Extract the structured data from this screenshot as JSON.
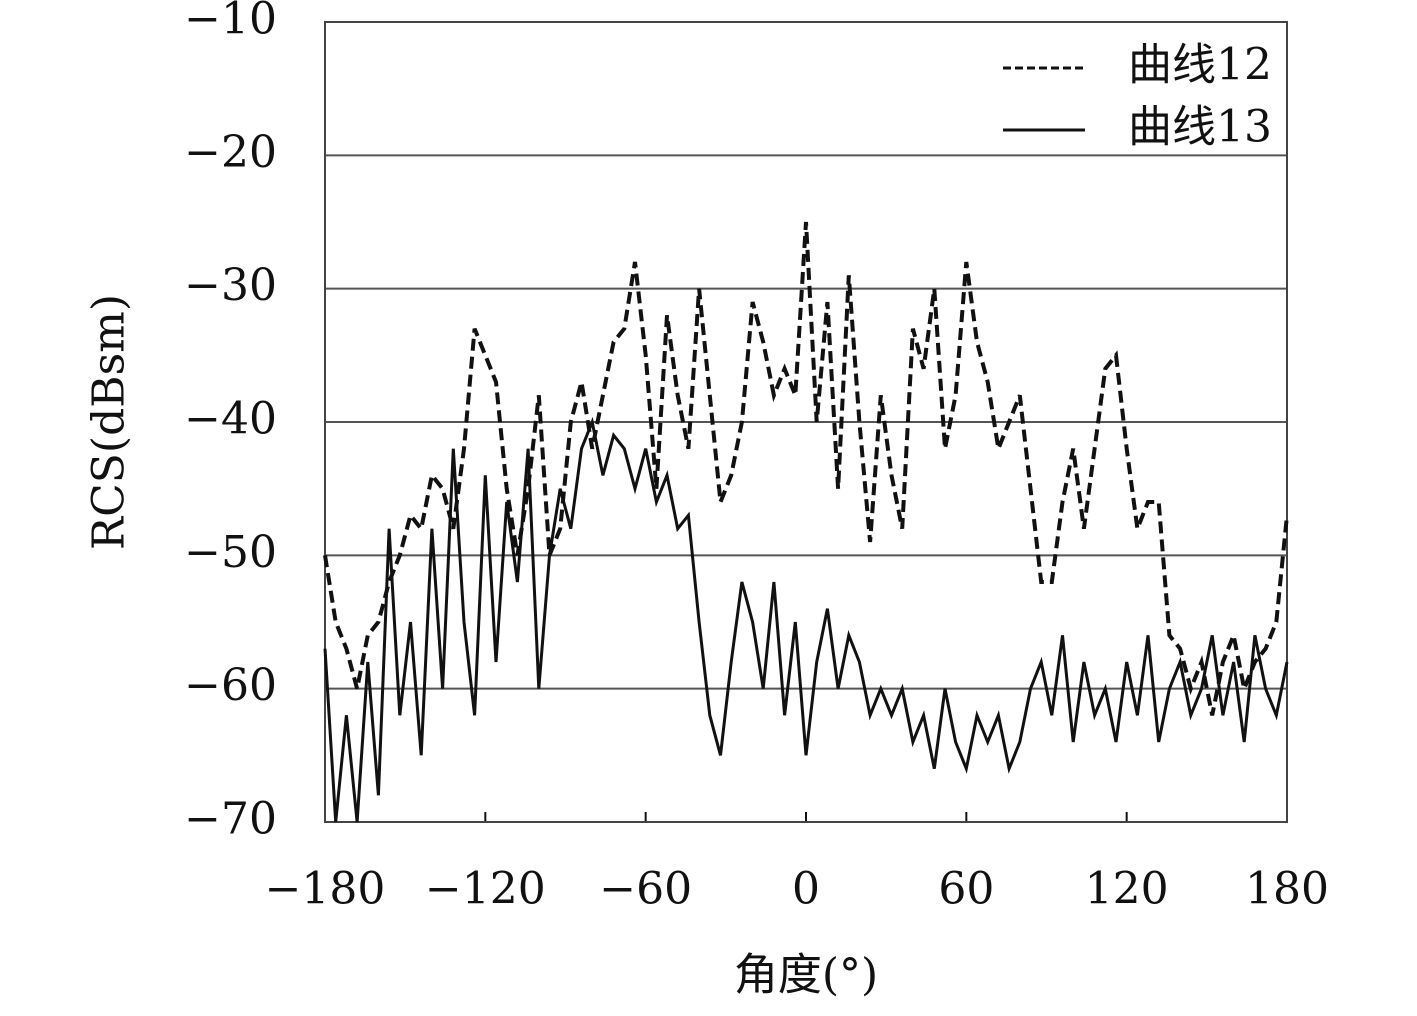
{
  "chart_data": {
    "type": "line",
    "xlabel": "角度(°)",
    "ylabel": "RCS(dBsm)",
    "xlim": [
      -180,
      180
    ],
    "ylim": [
      -70,
      -10
    ],
    "xticks": [
      {
        "value": -180,
        "label": "−180"
      },
      {
        "value": -120,
        "label": "−120"
      },
      {
        "value": -60,
        "label": "−60"
      },
      0,
      60,
      120,
      180
    ],
    "yticks": [
      {
        "value": -70,
        "label": "−70"
      },
      {
        "value": -60,
        "label": "−60"
      },
      {
        "value": -50,
        "label": "−50"
      },
      {
        "value": -40,
        "label": "−40"
      },
      {
        "value": -30,
        "label": "−30"
      },
      {
        "value": -20,
        "label": "−20"
      },
      {
        "value": -10,
        "label": "−10"
      }
    ],
    "grid": true,
    "legend": "upper right",
    "x": [
      -180,
      -176,
      -172,
      -168,
      -164,
      -160,
      -156,
      -152,
      -148,
      -144,
      -140,
      -136,
      -132,
      -128,
      -124,
      -120,
      -116,
      -112,
      -108,
      -104,
      -100,
      -96,
      -92,
      -88,
      -84,
      -80,
      -76,
      -72,
      -68,
      -64,
      -60,
      -56,
      -52,
      -48,
      -44,
      -40,
      -36,
      -32,
      -28,
      -24,
      -20,
      -16,
      -12,
      -8,
      -4,
      0,
      4,
      8,
      12,
      16,
      20,
      24,
      28,
      32,
      36,
      40,
      44,
      48,
      52,
      56,
      60,
      64,
      68,
      72,
      76,
      80,
      84,
      88,
      92,
      96,
      100,
      104,
      108,
      112,
      116,
      120,
      124,
      128,
      132,
      136,
      140,
      144,
      148,
      152,
      156,
      160,
      164,
      168,
      172,
      176,
      180
    ],
    "series": [
      {
        "name": "曲线12",
        "color": "#111111",
        "line_style": "dashed",
        "values": [
          -50,
          -55,
          -57,
          -60,
          -56,
          -55,
          -52,
          -50,
          -47,
          -48,
          -44,
          -45,
          -48,
          -42,
          -33,
          -35,
          -37,
          -45,
          -50,
          -45,
          -38,
          -50,
          -48,
          -40,
          -37,
          -42,
          -38,
          -34,
          -33,
          -28,
          -35,
          -45,
          -32,
          -38,
          -42,
          -30,
          -38,
          -46,
          -44,
          -40,
          -31,
          -34,
          -38,
          -36,
          -38,
          -25,
          -40,
          -31,
          -45,
          -29,
          -40,
          -49,
          -38,
          -44,
          -48,
          -33,
          -36,
          -30,
          -42,
          -38,
          -28,
          -34,
          -37,
          -42,
          -40,
          -38,
          -45,
          -52,
          -52,
          -46,
          -42,
          -48,
          -42,
          -36,
          -35,
          -42,
          -48,
          -46,
          -46,
          -56,
          -57,
          -60,
          -58,
          -62,
          -58,
          -56,
          -60,
          -58,
          -57,
          -55,
          -47
        ]
      },
      {
        "name": "曲线13",
        "color": "#111111",
        "line_style": "solid",
        "values": [
          -57,
          -70,
          -62,
          -70,
          -58,
          -68,
          -48,
          -62,
          -55,
          -65,
          -48,
          -60,
          -42,
          -55,
          -62,
          -44,
          -58,
          -46,
          -52,
          -42,
          -60,
          -50,
          -45,
          -48,
          -42,
          -40,
          -44,
          -41,
          -42,
          -45,
          -42,
          -46,
          -44,
          -48,
          -47,
          -55,
          -62,
          -65,
          -58,
          -52,
          -55,
          -60,
          -52,
          -62,
          -55,
          -65,
          -58,
          -54,
          -60,
          -56,
          -58,
          -62,
          -60,
          -62,
          -60,
          -64,
          -62,
          -66,
          -60,
          -64,
          -66,
          -62,
          -64,
          -62,
          -66,
          -64,
          -60,
          -58,
          -62,
          -56,
          -64,
          -58,
          -62,
          -60,
          -64,
          -58,
          -62,
          -56,
          -64,
          -60,
          -58,
          -62,
          -60,
          -56,
          -62,
          -58,
          -64,
          -56,
          -60,
          -62,
          -58
        ]
      }
    ]
  }
}
